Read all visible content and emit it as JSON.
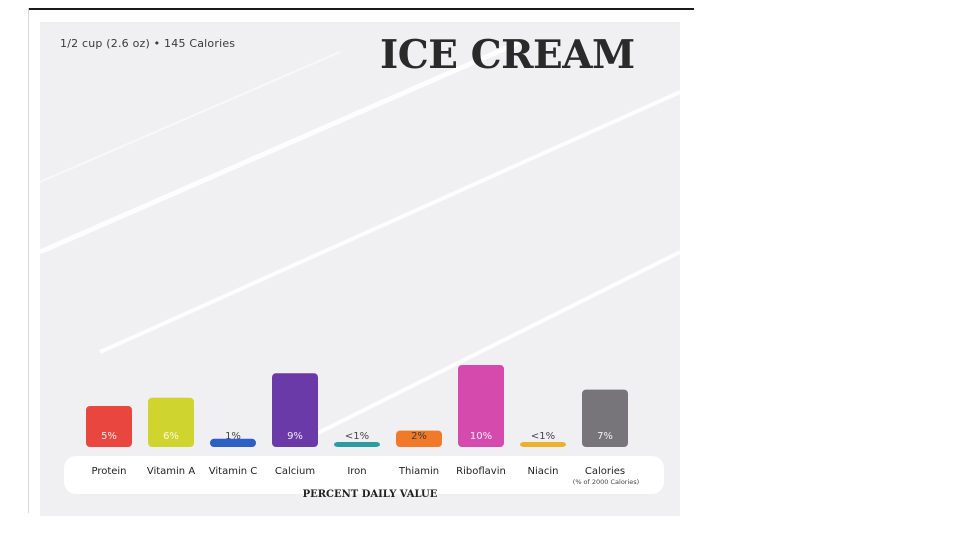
{
  "header": {
    "serving": "1/2 cup (2.6 oz) • 145 Calories",
    "title": "ICE CREAM"
  },
  "footer": {
    "xlabel": "PERCENT DAILY VALUE",
    "calories_note": "(% of 2000 Calories)"
  },
  "colors": {
    "background": "#f0eff1",
    "axis_band": "#ffffff"
  },
  "chart_data": {
    "type": "bar",
    "title": "ICE CREAM",
    "subtitle": "1/2 cup (2.6 oz) • 145 Calories",
    "xlabel": "PERCENT DAILY VALUE",
    "ylabel": "",
    "ylim": [
      0,
      10
    ],
    "grid": false,
    "legend": "none",
    "categories": [
      "Protein",
      "Vitamin A",
      "Vitamin C",
      "Calcium",
      "Iron",
      "Thiamin",
      "Riboflavin",
      "Niacin",
      "Calories"
    ],
    "values": [
      5,
      6,
      1,
      9,
      0.5,
      2,
      10,
      0.5,
      7
    ],
    "value_labels": [
      "5%",
      "6%",
      "1%",
      "9%",
      "<1%",
      "2%",
      "10%",
      "<1%",
      "7%"
    ],
    "colors": [
      "#e8463f",
      "#cfd42e",
      "#2e5fc4",
      "#6a3aa8",
      "#2a9da0",
      "#f07a2a",
      "#d44aad",
      "#e9b22a",
      "#77757a"
    ]
  }
}
